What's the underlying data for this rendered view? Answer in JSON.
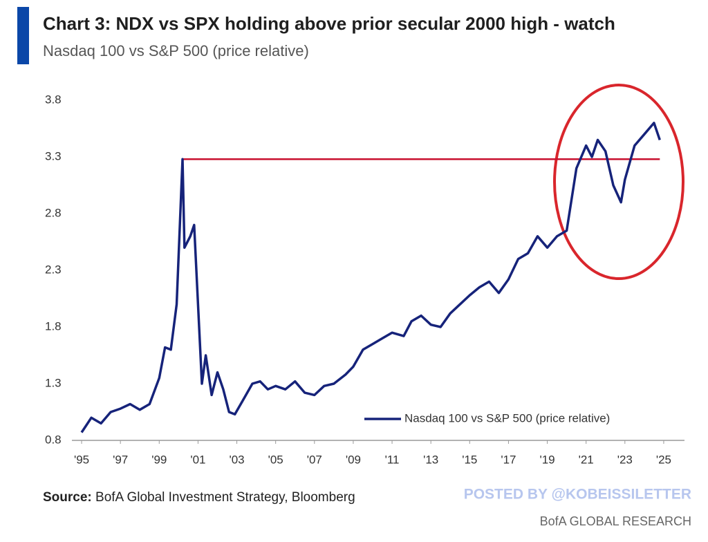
{
  "chart_data": {
    "type": "line",
    "title": "Chart 3: NDX vs SPX holding above prior secular 2000 high - watch",
    "subtitle": "Nasdaq 100 vs S&P 500 (price relative)",
    "source_label": "Source:",
    "source": "BofA Global Investment Strategy, Bloomberg",
    "watermark": "POSTED BY @KOBEISSILETTER",
    "credit": "BofA GLOBAL RESEARCH",
    "x": [
      1995.0,
      1995.5,
      1996.0,
      1996.5,
      1997.0,
      1997.5,
      1998.0,
      1998.5,
      1999.0,
      1999.3,
      1999.6,
      1999.9,
      2000.2,
      2000.3,
      2000.6,
      2000.8,
      2001.0,
      2001.2,
      2001.4,
      2001.7,
      2002.0,
      2002.3,
      2002.6,
      2002.9,
      2003.3,
      2003.8,
      2004.2,
      2004.6,
      2005.0,
      2005.5,
      2006.0,
      2006.5,
      2007.0,
      2007.5,
      2008.0,
      2008.6,
      2009.0,
      2009.5,
      2010.0,
      2010.5,
      2011.0,
      2011.6,
      2012.0,
      2012.5,
      2013.0,
      2013.5,
      2014.0,
      2014.5,
      2015.0,
      2015.5,
      2016.0,
      2016.5,
      2017.0,
      2017.5,
      2018.0,
      2018.5,
      2019.0,
      2019.5,
      2020.0,
      2020.5,
      2021.0,
      2021.3,
      2021.6,
      2022.0,
      2022.4,
      2022.8,
      2023.0,
      2023.5,
      2024.0,
      2024.5,
      2024.8
    ],
    "series": [
      {
        "name": "Nasdaq 100 vs S&P 500 (price relative)",
        "color": "#16237a",
        "values": [
          0.87,
          1.0,
          0.95,
          1.05,
          1.08,
          1.12,
          1.07,
          1.12,
          1.35,
          1.62,
          1.6,
          2.0,
          3.28,
          2.5,
          2.6,
          2.7,
          2.0,
          1.3,
          1.55,
          1.2,
          1.4,
          1.25,
          1.05,
          1.03,
          1.15,
          1.3,
          1.32,
          1.25,
          1.28,
          1.25,
          1.32,
          1.22,
          1.2,
          1.28,
          1.3,
          1.38,
          1.45,
          1.6,
          1.65,
          1.7,
          1.75,
          1.72,
          1.85,
          1.9,
          1.82,
          1.8,
          1.92,
          2.0,
          2.08,
          2.15,
          2.2,
          2.1,
          2.22,
          2.4,
          2.45,
          2.6,
          2.5,
          2.6,
          2.65,
          3.2,
          3.4,
          3.3,
          3.45,
          3.35,
          3.05,
          2.9,
          3.1,
          3.4,
          3.5,
          3.6,
          3.45
        ]
      }
    ],
    "reference_line": {
      "value": 3.28,
      "color": "#c8102e",
      "x": [
        2000.2,
        2024.8
      ]
    },
    "xlim": [
      1994.5,
      2026
    ],
    "xticks": [
      {
        "value": 1995,
        "label": "'95"
      },
      {
        "value": 1997,
        "label": "'97"
      },
      {
        "value": 1999,
        "label": "'99"
      },
      {
        "value": 2001,
        "label": "'01"
      },
      {
        "value": 2003,
        "label": "'03"
      },
      {
        "value": 2005,
        "label": "'05"
      },
      {
        "value": 2007,
        "label": "'07"
      },
      {
        "value": 2009,
        "label": "'09"
      },
      {
        "value": 2011,
        "label": "'11"
      },
      {
        "value": 2013,
        "label": "'13"
      },
      {
        "value": 2015,
        "label": "'15"
      },
      {
        "value": 2017,
        "label": "'17"
      },
      {
        "value": 2019,
        "label": "'19"
      },
      {
        "value": 2021,
        "label": "'21"
      },
      {
        "value": 2023,
        "label": "'23"
      },
      {
        "value": 2025,
        "label": "'25"
      }
    ],
    "ylim": [
      0.8,
      3.8
    ],
    "yticks": [
      0.8,
      1.3,
      1.8,
      2.3,
      2.8,
      3.3,
      3.8
    ],
    "grid": false,
    "legend": "lower-right"
  }
}
